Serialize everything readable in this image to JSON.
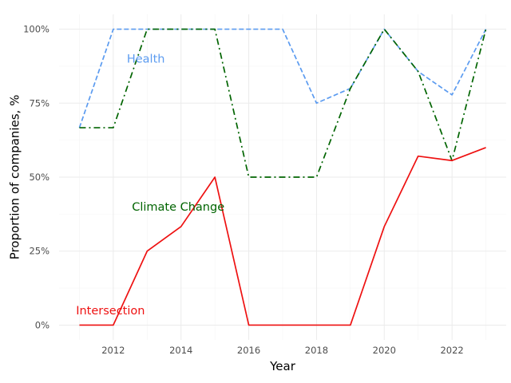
{
  "chart_data": {
    "type": "line",
    "title": "",
    "xlabel": "Year",
    "ylabel": "Proportion of companies, %",
    "x": [
      2011,
      2012,
      2013,
      2014,
      2015,
      2016,
      2017,
      2018,
      2019,
      2020,
      2021,
      2022,
      2023
    ],
    "xlim": [
      2010.4,
      2023.6
    ],
    "ylim": [
      -0.05,
      1.05
    ],
    "x_ticks": [
      2012,
      2014,
      2016,
      2018,
      2020,
      2022
    ],
    "x_tick_labels": [
      "2012",
      "2014",
      "2016",
      "2018",
      "2020",
      "2022"
    ],
    "y_ticks": [
      0,
      0.25,
      0.5,
      0.75,
      1.0
    ],
    "y_tick_labels": [
      "0%",
      "25%",
      "50%",
      "75%",
      "100%"
    ],
    "grid": true,
    "legend": "none",
    "series": [
      {
        "name": "Health",
        "color": "#5b9bf0",
        "dash": "dashed",
        "values": [
          0.667,
          1.0,
          1.0,
          1.0,
          1.0,
          1.0,
          1.0,
          0.75,
          0.8,
          1.0,
          0.857,
          0.778,
          1.0
        ],
        "label_at": [
          2012.4,
          0.9
        ]
      },
      {
        "name": "Climate Change",
        "color": "#006400",
        "dash": "dashdot",
        "values": [
          0.667,
          0.667,
          1.0,
          1.0,
          1.0,
          0.5,
          0.5,
          0.5,
          0.8,
          1.0,
          0.857,
          0.556,
          1.0
        ],
        "label_at": [
          2012.55,
          0.4
        ]
      },
      {
        "name": "Intersection",
        "color": "#ee1111",
        "dash": "solid",
        "values": [
          0.0,
          0.0,
          0.25,
          0.333,
          0.5,
          0.0,
          0.0,
          0.0,
          0.0,
          0.333,
          0.571,
          0.556,
          0.6
        ],
        "label_at": [
          2010.9,
          0.05
        ]
      }
    ]
  }
}
